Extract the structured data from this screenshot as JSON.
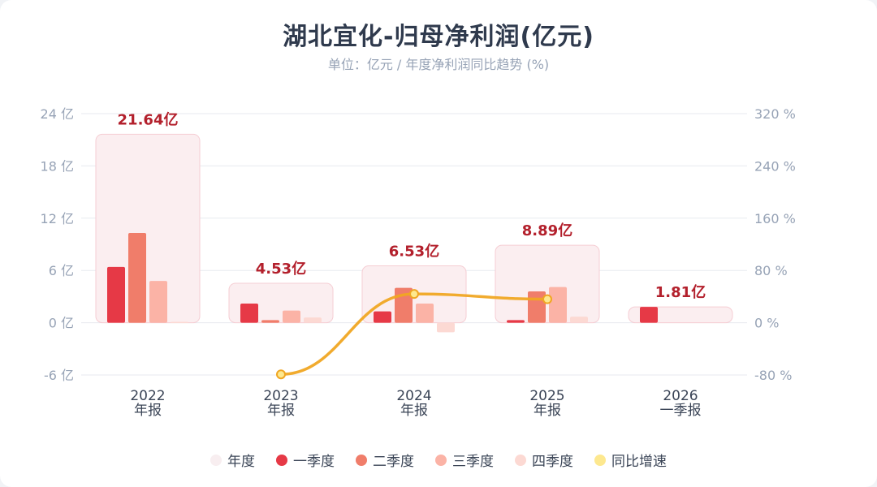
{
  "title": "湖北宜化-归母净利润(亿元)",
  "subtitle": "单位：亿元 / 年度净利润同比趋势 (%)",
  "legend": [
    {
      "label": "年度",
      "color": "#f8eef0"
    },
    {
      "label": "一季度",
      "color": "#e63946"
    },
    {
      "label": "二季度",
      "color": "#f07d6a"
    },
    {
      "label": "三季度",
      "color": "#fbb3a6"
    },
    {
      "label": "四季度",
      "color": "#fcd9d3"
    },
    {
      "label": "同比增速",
      "color": "#fde88f"
    }
  ],
  "chart_data": {
    "type": "bar",
    "categories": [
      "2022",
      "2023",
      "2024",
      "2025",
      "2026"
    ],
    "category_sublabels": [
      "年报",
      "年报",
      "年报",
      "年报",
      "一季报"
    ],
    "annual": [
      21.64,
      4.53,
      6.53,
      8.89,
      1.81
    ],
    "annual_labels": [
      "21.64亿",
      "4.53亿",
      "6.53亿",
      "8.89亿",
      "1.81亿"
    ],
    "series": [
      {
        "name": "一季度",
        "values": [
          6.4,
          2.2,
          1.3,
          0.3,
          1.81
        ]
      },
      {
        "name": "二季度",
        "values": [
          10.3,
          0.3,
          4.0,
          3.6,
          null
        ]
      },
      {
        "name": "三季度",
        "values": [
          4.8,
          1.4,
          2.2,
          4.1,
          null
        ]
      },
      {
        "name": "四季度",
        "values": [
          0.1,
          0.6,
          -1.1,
          0.7,
          null
        ]
      }
    ],
    "growth": {
      "name": "同比增速",
      "values": [
        null,
        -79,
        44,
        36,
        null
      ]
    },
    "y_left": {
      "min": -6,
      "max": 24,
      "ticks": [
        24,
        18,
        12,
        6,
        0,
        -6
      ],
      "tick_labels": [
        "24 亿",
        "18 亿",
        "12 亿",
        "6 亿",
        "0 亿",
        "-6 亿"
      ]
    },
    "y_right": {
      "min": -80,
      "max": 320,
      "ticks": [
        320,
        240,
        160,
        80,
        0,
        -80
      ],
      "tick_labels": [
        "320 %",
        "240 %",
        "160 %",
        "80 %",
        "0 %",
        "-80 %"
      ]
    },
    "colors": {
      "annual_fill": "#fbeef0",
      "annual_stroke": "#f5cdd3",
      "q1": "#e63946",
      "q2": "#f07d6a",
      "q3": "#fbb3a6",
      "q4": "#fcd9d3",
      "line": "#f0a623",
      "point_fill": "#fde88f",
      "label": "#b3202c"
    }
  }
}
